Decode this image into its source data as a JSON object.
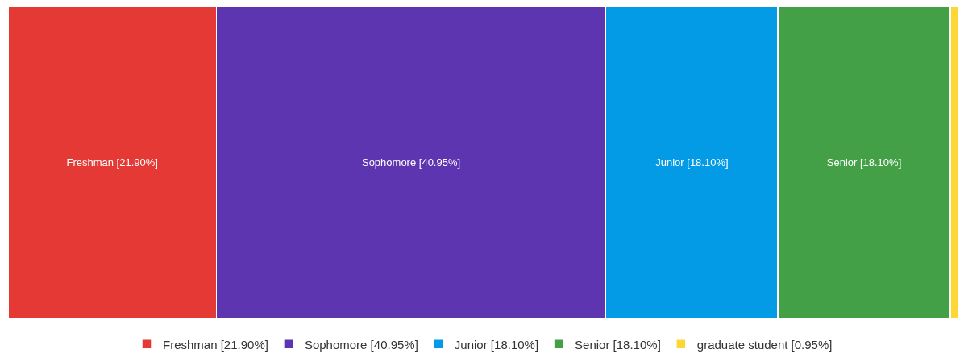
{
  "chart_data": {
    "type": "bar",
    "orientation": "horizontal",
    "stacked": true,
    "categories": [
      null
    ],
    "series": [
      {
        "name": "Freshman [21.90%]",
        "color": "#e53935",
        "values": [
          21.9
        ],
        "value_labels": [
          "Freshman [21.90%]"
        ]
      },
      {
        "name": "Sophomore [40.95%]",
        "color": "#5e35b1",
        "values": [
          40.95
        ],
        "value_labels": [
          "Sophomore [40.95%]"
        ]
      },
      {
        "name": "Junior [18.10%]",
        "color": "#039be5",
        "values": [
          18.1
        ],
        "value_labels": [
          "Junior [18.10%]"
        ]
      },
      {
        "name": "Senior [18.10%]",
        "color": "#43a047",
        "values": [
          18.1
        ],
        "value_labels": [
          "Senior [18.10%]"
        ]
      },
      {
        "name": "graduate student [0.95%]",
        "color": "#fdd835",
        "values": [
          0.95
        ],
        "value_labels": [
          null
        ]
      }
    ],
    "tick_labels": false,
    "legend": "bottom"
  }
}
